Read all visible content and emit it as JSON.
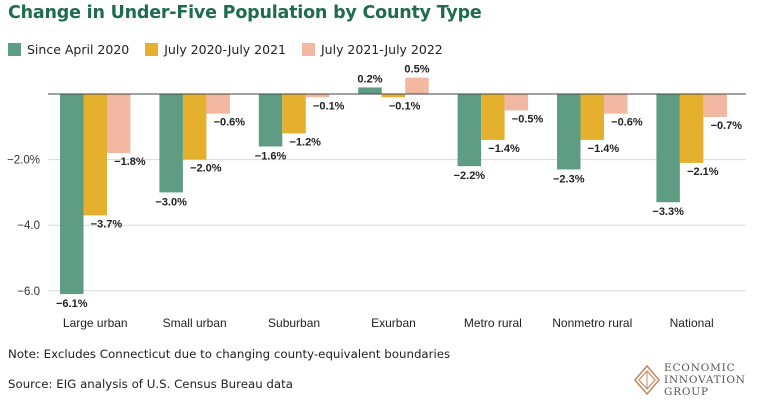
{
  "chart_data": {
    "type": "bar",
    "title": "Change in Under-Five Population by County Type",
    "categories": [
      "Large urban",
      "Small urban",
      "Suburban",
      "Exurban",
      "Metro rural",
      "Nonmetro rural",
      "National"
    ],
    "series": [
      {
        "name": "Since April 2020",
        "color": "#5e9c84",
        "values": [
          -6.1,
          -3.0,
          -1.6,
          0.2,
          -2.2,
          -2.3,
          -3.3
        ]
      },
      {
        "name": "July 2020-July 2021",
        "color": "#e5b02d",
        "values": [
          -3.7,
          -2.0,
          -1.2,
          -0.1,
          -1.4,
          -1.4,
          -2.1
        ]
      },
      {
        "name": "July 2021-July 2022",
        "color": "#f2b8a2",
        "values": [
          -1.8,
          -0.6,
          -0.1,
          0.5,
          -0.5,
          -0.6,
          -0.7
        ]
      }
    ],
    "data_labels": [
      [
        "−6.1%",
        "−3.0%",
        "−1.6%",
        "0.2%",
        "−2.2%",
        "−2.3%",
        "−3.3%"
      ],
      [
        "−3.7%",
        "−2.0%",
        "−1.2%",
        "−0.1%",
        "−1.4%",
        "−1.4%",
        "−2.1%"
      ],
      [
        "−1.8%",
        "−0.6%",
        "−0.1%",
        "0.5%",
        "−0.5%",
        "−0.6%",
        "−0.7%"
      ]
    ],
    "yticks": [
      -2.0,
      -4.0,
      -6.0
    ],
    "ytick_labels": [
      "−2.0%",
      "−4.0",
      "−6.0"
    ],
    "ylim": [
      -6.2,
      0.7
    ],
    "grid": true,
    "xlabel": "",
    "ylabel": "",
    "legend_position": "top-left"
  },
  "note": "Note: Excludes Connecticut due to changing county-equivalent boundaries",
  "source": "Source: EIG analysis of U.S. Census Bureau data",
  "logo": {
    "line1": "ECONOMIC",
    "line2": "INNOVATION",
    "line3": "GROUP"
  }
}
